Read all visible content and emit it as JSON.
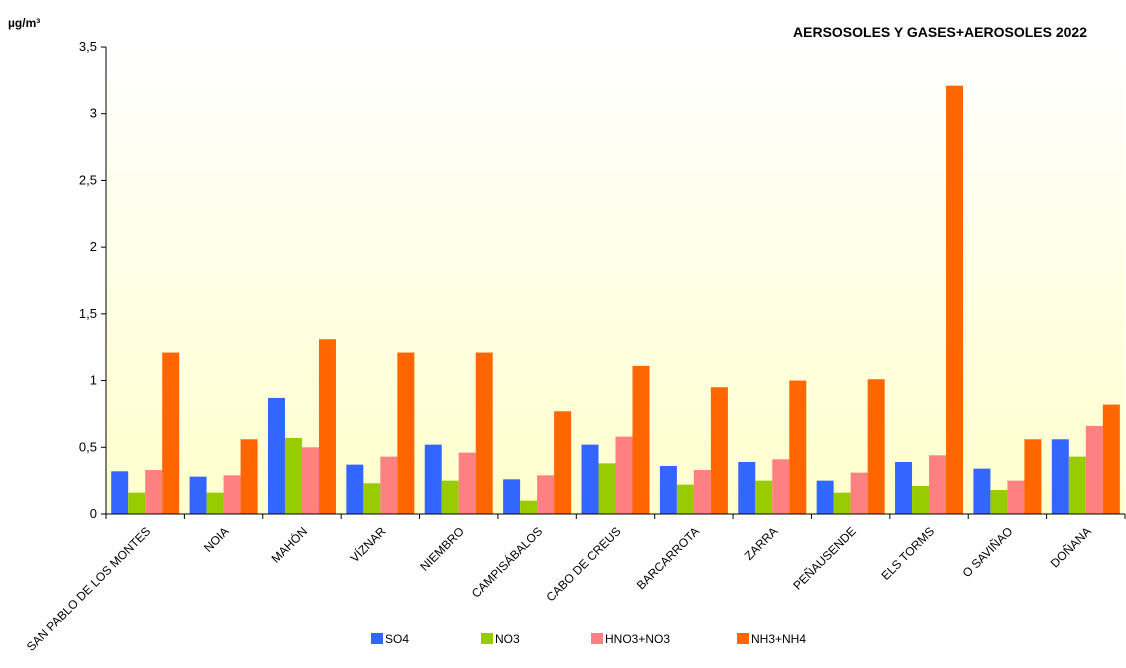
{
  "chart_data": {
    "type": "bar",
    "title": "AERSOSOLES Y GASES+AEROSOLES 2022",
    "ylabel": "µg/m³",
    "xlabel": "",
    "ylim": [
      0,
      3.5
    ],
    "yticks": [
      "0",
      "0,5",
      "1",
      "1,5",
      "2",
      "2,5",
      "3",
      "3,5"
    ],
    "grid": false,
    "legend_position": "bottom",
    "background": "gradient light yellow",
    "categories": [
      "SAN PABLO DE LOS MONTES",
      "NOIA",
      "MAHÓN",
      "VÍZNAR",
      "NIEMBRO",
      "CAMPISÁBALOS",
      "CABO DE CREUS",
      "BARCARROTA",
      "ZARRA",
      "PEÑAUSENDE",
      "ELS TORMS",
      "O SAVIÑAO",
      "DOÑANA"
    ],
    "series": [
      {
        "name": "SO4",
        "color": "#3366FF",
        "values": [
          0.32,
          0.28,
          0.87,
          0.37,
          0.52,
          0.26,
          0.52,
          0.36,
          0.39,
          0.25,
          0.39,
          0.34,
          0.56
        ]
      },
      {
        "name": "NO3",
        "color": "#99CC00",
        "values": [
          0.16,
          0.16,
          0.57,
          0.23,
          0.25,
          0.1,
          0.38,
          0.22,
          0.25,
          0.16,
          0.21,
          0.18,
          0.43
        ]
      },
      {
        "name": "HNO3+NO3",
        "color": "#FF8080",
        "values": [
          0.33,
          0.29,
          0.5,
          0.43,
          0.46,
          0.29,
          0.58,
          0.33,
          0.41,
          0.31,
          0.44,
          0.25,
          0.66
        ]
      },
      {
        "name": "NH3+NH4",
        "color": "#FF6600",
        "values": [
          1.21,
          0.56,
          1.31,
          1.21,
          1.21,
          0.77,
          1.11,
          0.95,
          1.0,
          1.01,
          3.21,
          0.56,
          0.82
        ]
      }
    ]
  }
}
